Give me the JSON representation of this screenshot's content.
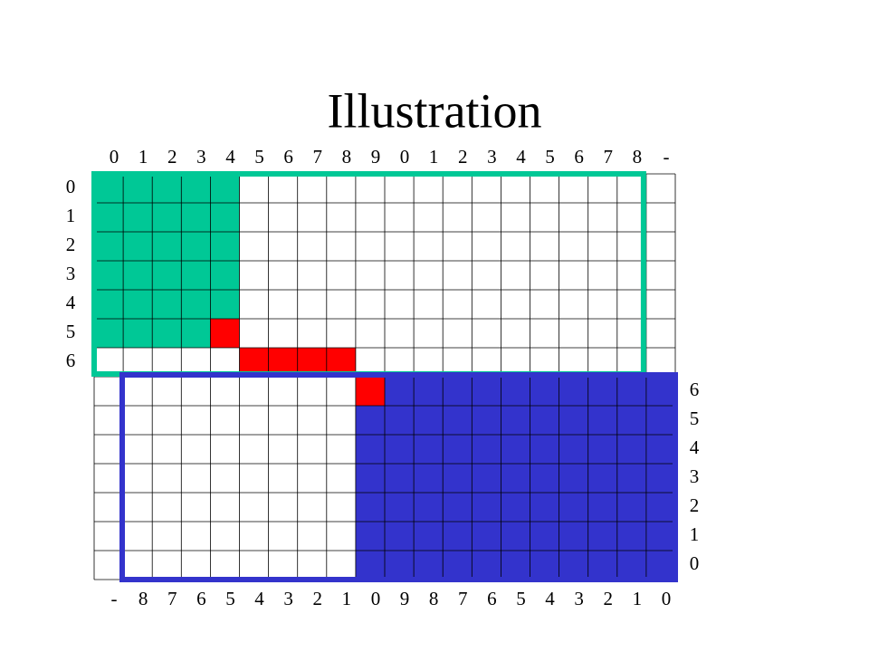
{
  "title": "Illustration",
  "top_labels": [
    "0",
    "1",
    "2",
    "3",
    "4",
    "5",
    "6",
    "7",
    "8",
    "9",
    "0",
    "1",
    "2",
    "3",
    "4",
    "5",
    "6",
    "7",
    "8",
    "-"
  ],
  "left_labels": [
    "0",
    "1",
    "2",
    "3",
    "4",
    "5",
    "6"
  ],
  "right_labels": [
    "6",
    "5",
    "4",
    "3",
    "2",
    "1",
    "0"
  ],
  "bottom_labels": [
    "-",
    "8",
    "7",
    "6",
    "5",
    "4",
    "3",
    "2",
    "1",
    "0",
    "9",
    "8",
    "7",
    "6",
    "5",
    "4",
    "3",
    "2",
    "1",
    "0"
  ]
}
